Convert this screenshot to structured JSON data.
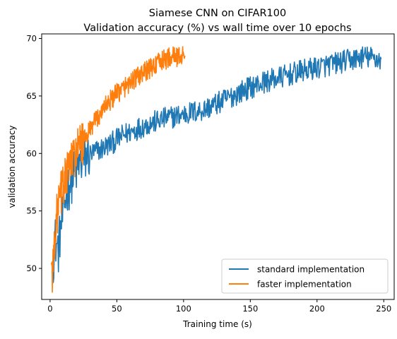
{
  "chart_data": {
    "type": "line",
    "title": "Siamese CNN on CIFAR100",
    "subtitle": "Validation accuracy (%) vs wall time over 10 epochs",
    "xlabel": "Training time (s)",
    "ylabel": "validation accuracy",
    "xlim": [
      -6.3,
      257.8
    ],
    "ylim": [
      47.3,
      70.4
    ],
    "x_ticks": [
      0,
      50,
      100,
      150,
      200,
      250
    ],
    "y_ticks": [
      50,
      55,
      60,
      65,
      70
    ],
    "grid": false,
    "legend_position": "lower-right",
    "series": [
      {
        "name": "standard implementation",
        "color": "#1f77b4",
        "x_start": 2,
        "x_end": 248,
        "y_start": 50.5,
        "y_end": 68.2,
        "anchors": [
          [
            2,
            50.5
          ],
          [
            4,
            52.5
          ],
          [
            6,
            51.5
          ],
          [
            8,
            53.5
          ],
          [
            10,
            55
          ],
          [
            12,
            56.5
          ],
          [
            15,
            57.5
          ],
          [
            18,
            58.2
          ],
          [
            22,
            59
          ],
          [
            28,
            59.8
          ],
          [
            35,
            60.2
          ],
          [
            45,
            60.8
          ],
          [
            55,
            61.6
          ],
          [
            70,
            62.4
          ],
          [
            85,
            63
          ],
          [
            100,
            63.4
          ],
          [
            115,
            63.8
          ],
          [
            130,
            64.6
          ],
          [
            145,
            65.5
          ],
          [
            160,
            66.2
          ],
          [
            175,
            66.7
          ],
          [
            190,
            67.2
          ],
          [
            205,
            67.6
          ],
          [
            220,
            68
          ],
          [
            235,
            68.4
          ],
          [
            248,
            68.2
          ]
        ],
        "noise": 1.0
      },
      {
        "name": "faster implementation",
        "color": "#ff7f0e",
        "x_start": 1,
        "x_end": 101,
        "y_start": 50.5,
        "y_end": 68.5,
        "anchors": [
          [
            1,
            50.5
          ],
          [
            2,
            49.5
          ],
          [
            3,
            52
          ],
          [
            5,
            54.5
          ],
          [
            8,
            56.5
          ],
          [
            12,
            58
          ],
          [
            16,
            59.3
          ],
          [
            20,
            60.2
          ],
          [
            25,
            61
          ],
          [
            30,
            62
          ],
          [
            35,
            63
          ],
          [
            40,
            64
          ],
          [
            50,
            65.2
          ],
          [
            60,
            66.2
          ],
          [
            70,
            67
          ],
          [
            80,
            67.8
          ],
          [
            90,
            68.4
          ],
          [
            101,
            68.5
          ]
        ],
        "noise": 0.9
      }
    ]
  }
}
